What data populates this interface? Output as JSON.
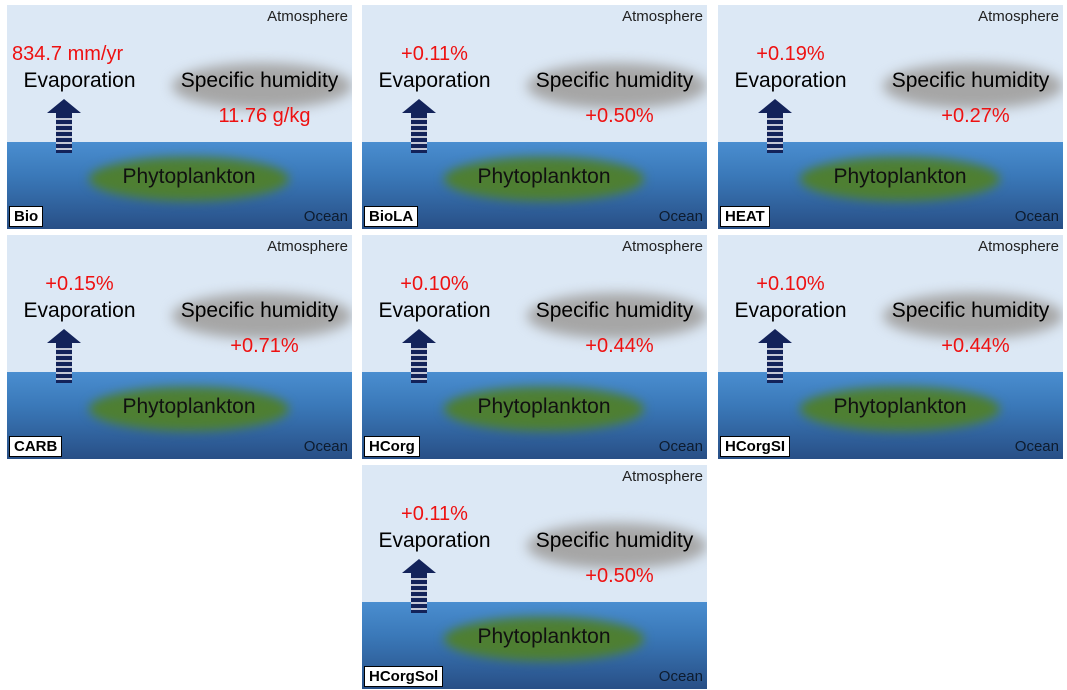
{
  "labels": {
    "atmosphere": "Atmosphere",
    "ocean": "Ocean",
    "evaporation": "Evaporation",
    "specific_humidity": "Specific humidity",
    "phytoplankton": "Phytoplankton"
  },
  "colors": {
    "atmosphere": "#dce8f5",
    "ocean_top": "#4a8ed0",
    "ocean_bottom": "#284f86",
    "arrow": "#13235a",
    "cloud": "#a6a6a6",
    "phytoplankton": "#4e7f32",
    "value_text": "#ee1111"
  },
  "panels": [
    {
      "tag": "Bio",
      "evaporation": "834.7 mm/yr",
      "specific_humidity": "11.76 g/kg"
    },
    {
      "tag": "BioLA",
      "evaporation": "+0.11%",
      "specific_humidity": "+0.50%"
    },
    {
      "tag": "HEAT",
      "evaporation": "+0.19%",
      "specific_humidity": "+0.27%"
    },
    {
      "tag": "CARB",
      "evaporation": "+0.15%",
      "specific_humidity": "+0.71%"
    },
    {
      "tag": "HCorg",
      "evaporation": "+0.10%",
      "specific_humidity": "+0.44%"
    },
    {
      "tag": "HCorgSI",
      "evaporation": "+0.10%",
      "specific_humidity": "+0.44%"
    },
    {
      "tag": "HCorgSol",
      "evaporation": "+0.11%",
      "specific_humidity": "+0.50%"
    }
  ]
}
